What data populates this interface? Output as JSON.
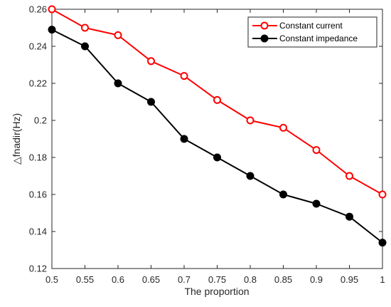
{
  "chart_data": {
    "type": "line",
    "xlabel": "The proportion",
    "ylabel": "△fnadir(Hz)",
    "xlim": [
      0.5,
      1
    ],
    "ylim": [
      0.12,
      0.26
    ],
    "x": [
      0.5,
      0.55,
      0.6,
      0.65,
      0.7,
      0.75,
      0.8,
      0.85,
      0.9,
      0.95,
      1
    ],
    "x_tick_labels": [
      "0.5",
      "0.55",
      "0.6",
      "0.65",
      "0.7",
      "0.75",
      "0.8",
      "0.85",
      "0.9",
      "0.95",
      "1"
    ],
    "y_ticks": [
      0.12,
      0.14,
      0.16,
      0.18,
      0.2,
      0.22,
      0.24,
      0.26
    ],
    "y_tick_labels": [
      "0.12",
      "0.14",
      "0.16",
      "0.18",
      "0.2",
      "0.22",
      "0.24",
      "0.26"
    ],
    "grid": false,
    "legend_position": "top-right",
    "series": [
      {
        "name": "Constant current",
        "color": "#ff0000",
        "marker": "open-circle",
        "values": [
          0.26,
          0.25,
          0.246,
          0.232,
          0.224,
          0.211,
          0.2,
          0.196,
          0.184,
          0.17,
          0.16
        ]
      },
      {
        "name": "Constant impedance",
        "color": "#000000",
        "marker": "filled-circle",
        "values": [
          0.249,
          0.24,
          0.22,
          0.21,
          0.19,
          0.18,
          0.17,
          0.16,
          0.155,
          0.148,
          0.134
        ]
      }
    ]
  }
}
